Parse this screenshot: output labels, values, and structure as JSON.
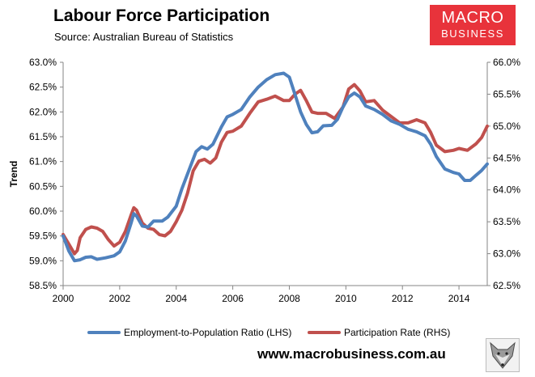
{
  "header": {
    "title": "Labour Force Participation",
    "subtitle": "Source: Australian Bureau of Statistics"
  },
  "brand": {
    "logo_line1": "MACRO",
    "logo_line2": "BUSINESS",
    "color": "#e8333b"
  },
  "footer": {
    "url": "www.macrobusiness.com.au",
    "fox_logo_icon": "fox-head-icon"
  },
  "chart_data": {
    "type": "line",
    "title": "Labour Force Participation",
    "subtitle": "Source: Australian Bureau of Statistics",
    "ylabel": "Trend",
    "xlabel": "",
    "xlim": [
      2000,
      2015
    ],
    "ylim_left": [
      58.5,
      63.0
    ],
    "ylim_right": [
      62.5,
      66.0
    ],
    "grid": false,
    "legend_position": "bottom",
    "x_ticks": [
      "2000",
      "2002",
      "2004",
      "2006",
      "2008",
      "2010",
      "2012",
      "2014"
    ],
    "y_ticks_left": [
      "58.5%",
      "59.0%",
      "59.5%",
      "60.0%",
      "60.5%",
      "61.0%",
      "61.5%",
      "62.0%",
      "62.5%",
      "63.0%"
    ],
    "y_ticks_right": [
      "62.5%",
      "63.0%",
      "63.5%",
      "64.0%",
      "64.5%",
      "65.0%",
      "65.5%",
      "66.0%"
    ],
    "series": [
      {
        "name": "Employment-to-Population Ratio (LHS)",
        "axis": "left",
        "color": "#4f81bd",
        "points": [
          [
            2000.0,
            59.5
          ],
          [
            2000.2,
            59.2
          ],
          [
            2000.4,
            59.0
          ],
          [
            2000.6,
            59.02
          ],
          [
            2000.8,
            59.07
          ],
          [
            2001.0,
            59.08
          ],
          [
            2001.2,
            59.03
          ],
          [
            2001.5,
            59.06
          ],
          [
            2001.8,
            59.1
          ],
          [
            2002.0,
            59.18
          ],
          [
            2002.2,
            59.4
          ],
          [
            2002.4,
            59.75
          ],
          [
            2002.5,
            59.95
          ],
          [
            2002.6,
            59.9
          ],
          [
            2002.8,
            59.7
          ],
          [
            2003.0,
            59.68
          ],
          [
            2003.2,
            59.8
          ],
          [
            2003.5,
            59.8
          ],
          [
            2003.7,
            59.88
          ],
          [
            2004.0,
            60.1
          ],
          [
            2004.2,
            60.45
          ],
          [
            2004.5,
            60.9
          ],
          [
            2004.7,
            61.2
          ],
          [
            2004.9,
            61.3
          ],
          [
            2005.1,
            61.25
          ],
          [
            2005.3,
            61.35
          ],
          [
            2005.6,
            61.7
          ],
          [
            2005.8,
            61.9
          ],
          [
            2006.0,
            61.95
          ],
          [
            2006.3,
            62.05
          ],
          [
            2006.6,
            62.3
          ],
          [
            2006.9,
            62.5
          ],
          [
            2007.2,
            62.65
          ],
          [
            2007.5,
            62.75
          ],
          [
            2007.8,
            62.78
          ],
          [
            2008.0,
            62.7
          ],
          [
            2008.2,
            62.35
          ],
          [
            2008.4,
            62.0
          ],
          [
            2008.6,
            61.75
          ],
          [
            2008.8,
            61.58
          ],
          [
            2009.0,
            61.6
          ],
          [
            2009.2,
            61.72
          ],
          [
            2009.5,
            61.73
          ],
          [
            2009.7,
            61.85
          ],
          [
            2009.9,
            62.1
          ],
          [
            2010.1,
            62.3
          ],
          [
            2010.3,
            62.38
          ],
          [
            2010.5,
            62.3
          ],
          [
            2010.7,
            62.12
          ],
          [
            2011.0,
            62.05
          ],
          [
            2011.3,
            61.95
          ],
          [
            2011.6,
            61.82
          ],
          [
            2011.9,
            61.75
          ],
          [
            2012.2,
            61.65
          ],
          [
            2012.5,
            61.6
          ],
          [
            2012.8,
            61.52
          ],
          [
            2013.0,
            61.35
          ],
          [
            2013.2,
            61.1
          ],
          [
            2013.5,
            60.85
          ],
          [
            2013.8,
            60.78
          ],
          [
            2014.0,
            60.75
          ],
          [
            2014.2,
            60.62
          ],
          [
            2014.4,
            60.62
          ],
          [
            2014.6,
            60.72
          ],
          [
            2014.8,
            60.82
          ],
          [
            2015.0,
            60.95
          ]
        ]
      },
      {
        "name": "Participation Rate (RHS)",
        "axis": "right",
        "color": "#c0504d",
        "points": [
          [
            2000.0,
            63.3
          ],
          [
            2000.2,
            63.15
          ],
          [
            2000.4,
            63.0
          ],
          [
            2000.5,
            63.05
          ],
          [
            2000.6,
            63.25
          ],
          [
            2000.8,
            63.38
          ],
          [
            2001.0,
            63.42
          ],
          [
            2001.2,
            63.4
          ],
          [
            2001.4,
            63.35
          ],
          [
            2001.6,
            63.22
          ],
          [
            2001.8,
            63.12
          ],
          [
            2002.0,
            63.18
          ],
          [
            2002.2,
            63.35
          ],
          [
            2002.4,
            63.6
          ],
          [
            2002.5,
            63.72
          ],
          [
            2002.6,
            63.68
          ],
          [
            2002.8,
            63.48
          ],
          [
            2003.0,
            63.4
          ],
          [
            2003.2,
            63.38
          ],
          [
            2003.4,
            63.3
          ],
          [
            2003.6,
            63.28
          ],
          [
            2003.8,
            63.35
          ],
          [
            2004.0,
            63.5
          ],
          [
            2004.2,
            63.68
          ],
          [
            2004.4,
            63.95
          ],
          [
            2004.6,
            64.3
          ],
          [
            2004.8,
            64.45
          ],
          [
            2005.0,
            64.48
          ],
          [
            2005.2,
            64.42
          ],
          [
            2005.4,
            64.5
          ],
          [
            2005.6,
            64.75
          ],
          [
            2005.8,
            64.9
          ],
          [
            2006.0,
            64.92
          ],
          [
            2006.3,
            65.0
          ],
          [
            2006.6,
            65.2
          ],
          [
            2006.9,
            65.38
          ],
          [
            2007.2,
            65.42
          ],
          [
            2007.5,
            65.47
          ],
          [
            2007.8,
            65.4
          ],
          [
            2008.0,
            65.4
          ],
          [
            2008.2,
            65.5
          ],
          [
            2008.4,
            65.56
          ],
          [
            2008.6,
            65.4
          ],
          [
            2008.8,
            65.22
          ],
          [
            2009.0,
            65.2
          ],
          [
            2009.3,
            65.2
          ],
          [
            2009.6,
            65.12
          ],
          [
            2009.9,
            65.3
          ],
          [
            2010.1,
            65.58
          ],
          [
            2010.3,
            65.65
          ],
          [
            2010.5,
            65.55
          ],
          [
            2010.7,
            65.38
          ],
          [
            2011.0,
            65.4
          ],
          [
            2011.3,
            65.25
          ],
          [
            2011.6,
            65.15
          ],
          [
            2011.9,
            65.05
          ],
          [
            2012.2,
            65.05
          ],
          [
            2012.5,
            65.1
          ],
          [
            2012.8,
            65.05
          ],
          [
            2013.0,
            64.9
          ],
          [
            2013.2,
            64.7
          ],
          [
            2013.5,
            64.6
          ],
          [
            2013.8,
            64.62
          ],
          [
            2014.0,
            64.65
          ],
          [
            2014.3,
            64.62
          ],
          [
            2014.6,
            64.72
          ],
          [
            2014.8,
            64.82
          ],
          [
            2015.0,
            65.0
          ]
        ]
      }
    ]
  }
}
